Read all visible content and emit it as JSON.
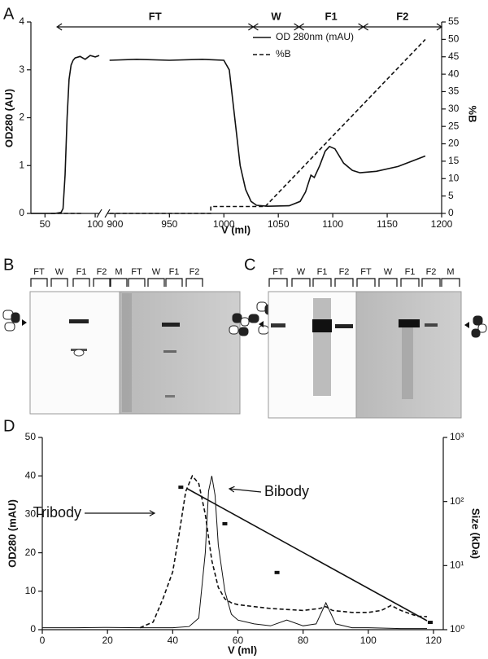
{
  "chart_data": [
    {
      "type": "line",
      "panel_label": "A",
      "xlabel": "V (ml)",
      "ylabel": "OD280 (AU)",
      "y2label": "%B",
      "xlim": [
        [
          36,
          104
        ],
        [
          893,
          1200
        ]
      ],
      "xticks": [
        50,
        100,
        900,
        950,
        1000,
        1050,
        1100,
        1150,
        1200
      ],
      "ylim": [
        0,
        4
      ],
      "yticks": [
        0,
        1,
        2,
        3,
        4
      ],
      "y2lim": [
        0,
        55
      ],
      "y2ticks": [
        0,
        5,
        10,
        15,
        20,
        25,
        30,
        35,
        40,
        45,
        50,
        55
      ],
      "legend": "upper right",
      "regions": [
        {
          "label": "FT",
          "start": 62,
          "end": 1027
        },
        {
          "label": "W",
          "start": 1027,
          "end": 1069
        },
        {
          "label": "F1",
          "start": 1069,
          "end": 1128
        },
        {
          "label": "F2",
          "start": 1128,
          "end": 1200
        }
      ],
      "series": [
        {
          "name": "OD 280nm (mAU)",
          "color": "#111111",
          "linestyle": "solid",
          "x": [
            36,
            60,
            66,
            68,
            70,
            72,
            74,
            76,
            78,
            80,
            85,
            90,
            95,
            100,
            104,
            893,
            895,
            920,
            950,
            980,
            1000,
            1005,
            1010,
            1015,
            1020,
            1025,
            1030,
            1040,
            1060,
            1070,
            1075,
            1080,
            1083,
            1088,
            1093,
            1097,
            1102,
            1110,
            1118,
            1125,
            1140,
            1160,
            1185
          ],
          "values": [
            0,
            0,
            0.02,
            0.1,
            0.8,
            2.0,
            2.8,
            3.1,
            3.2,
            3.25,
            3.28,
            3.22,
            3.3,
            3.27,
            3.3,
            null,
            3.2,
            3.22,
            3.2,
            3.22,
            3.2,
            3.0,
            2.0,
            1.0,
            0.5,
            0.25,
            0.17,
            0.15,
            0.16,
            0.25,
            0.45,
            0.8,
            0.75,
            1.0,
            1.3,
            1.4,
            1.35,
            1.05,
            0.9,
            0.85,
            0.88,
            0.98,
            1.2
          ]
        },
        {
          "name": "%B",
          "color": "#111111",
          "linestyle": "dashed",
          "axis": "y2",
          "x": [
            56,
            86,
            893,
            895,
            988,
            988,
            1038,
            1185
          ],
          "values": [
            0,
            0,
            null,
            0,
            0,
            2,
            2,
            50
          ]
        }
      ]
    },
    {
      "type": "line",
      "panel_label": "D",
      "xlabel": "V (ml)",
      "ylabel": "OD280 (mAU)",
      "y2label": "Size (kDa)",
      "xlim": [
        0,
        123
      ],
      "xticks": [
        0,
        20,
        40,
        60,
        80,
        100,
        120
      ],
      "ylim": [
        0,
        50
      ],
      "yticks": [
        0,
        10,
        20,
        30,
        40,
        50
      ],
      "y2lim": [
        1,
        1000
      ],
      "y2log": true,
      "y2ticks": [
        {
          "value": 1,
          "label": "10⁰"
        },
        {
          "value": 10,
          "label": "10¹"
        },
        {
          "value": 100,
          "label": "10²"
        },
        {
          "value": 1000,
          "label": "10³"
        }
      ],
      "annotations": [
        "Tribody",
        "Bibody"
      ],
      "series": [
        {
          "color": "#111111",
          "linestyle": "dashed",
          "x": [
            30,
            34,
            37,
            40,
            42,
            44,
            46,
            48,
            50,
            52,
            54,
            56,
            58,
            60,
            65,
            70,
            80,
            85,
            87,
            89,
            95,
            100,
            104,
            107,
            110,
            115,
            118
          ],
          "values": [
            0.5,
            2,
            8,
            15,
            25,
            36,
            40,
            38,
            30,
            18,
            11,
            8,
            7,
            6.5,
            6,
            5.5,
            5,
            5.5,
            6,
            5,
            4.5,
            4.5,
            5,
            6.3,
            5,
            3.5,
            3.4
          ]
        },
        {
          "color": "#111111",
          "linestyle": "solid",
          "x": [
            0,
            10,
            20,
            30,
            40,
            45,
            48,
            50,
            51,
            52,
            53,
            54,
            56,
            58,
            60,
            65,
            70,
            75,
            80,
            84,
            87,
            90,
            95,
            100,
            110,
            118
          ],
          "values": [
            0.5,
            0.5,
            0.6,
            0.5,
            0.5,
            0.8,
            3,
            20,
            36,
            40,
            35,
            22,
            10,
            4,
            2.5,
            1.5,
            1,
            2.5,
            1,
            1.5,
            7,
            1.5,
            0.5,
            0.5,
            0.3,
            0.3
          ]
        },
        {
          "type": "scatter",
          "color": "#111111",
          "axis": "y2",
          "x": [
            42.5,
            56,
            72,
            119
          ],
          "values": [
            167,
            45,
            7.8,
            1.3
          ]
        },
        {
          "color": "#111111",
          "linestyle": "solid",
          "axis": "y2",
          "x": [
            44.5,
            118
          ],
          "values": [
            158,
            1.38
          ]
        }
      ]
    }
  ],
  "gels": [
    {
      "panel_label": "B",
      "lanes": [
        "FT",
        "W",
        "F1",
        "F2",
        "M",
        "FT",
        "W",
        "F1",
        "F2"
      ]
    },
    {
      "panel_label": "C",
      "lanes": [
        "FT",
        "W",
        "F1",
        "F2",
        "FT",
        "W",
        "F1",
        "F2",
        "M"
      ]
    }
  ]
}
